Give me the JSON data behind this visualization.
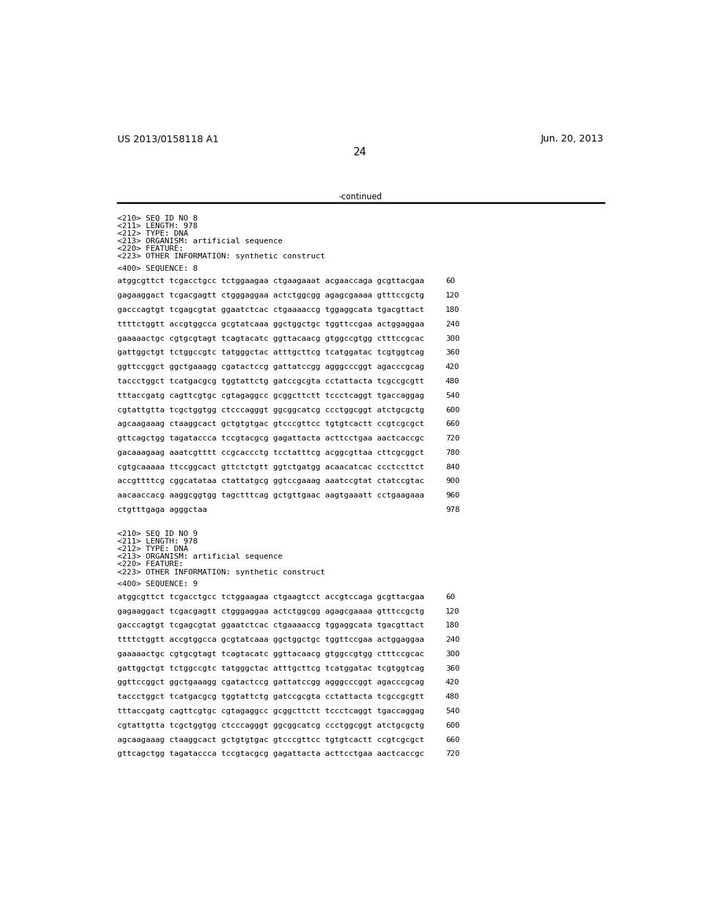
{
  "background_color": "#ffffff",
  "header_left": "US 2013/0158118 A1",
  "header_right": "Jun. 20, 2013",
  "page_number": "24",
  "continued_text": "-continued",
  "sections": [
    {
      "type": "metadata",
      "lines": [
        "<210> SEQ ID NO 8",
        "<211> LENGTH: 978",
        "<212> TYPE: DNA",
        "<213> ORGANISM: artificial sequence",
        "<220> FEATURE:",
        "<223> OTHER INFORMATION: synthetic construct"
      ]
    },
    {
      "type": "sequence_label",
      "text": "<400> SEQUENCE: 8"
    },
    {
      "type": "sequence",
      "rows": [
        [
          "atggcgttct tcgacctgcc tctggaagaa ctgaagaaat acgaaccaga gcgttacgaa",
          "60"
        ],
        [
          "gagaaggact tcgacgagtt ctgggaggaa actctggcgg agagcgaaaa gtttccgctg",
          "120"
        ],
        [
          "gacccagtgt tcgagcgtat ggaatctcac ctgaaaaccg tggaggcata tgacgttact",
          "180"
        ],
        [
          "ttttctggtt accgtggcca gcgtatcaaa ggctggctgc tggttccgaa actggaggaa",
          "240"
        ],
        [
          "gaaaaactgc cgtgcgtagt tcagtacatc ggttacaacg gtggccgtgg ctttccgcac",
          "300"
        ],
        [
          "gattggctgt tctggccgtc tatgggctac atttgcttcg tcatggatac tcgtggtcag",
          "360"
        ],
        [
          "ggttccggct ggctgaaagg cgatactccg gattatccgg agggcccggt agacccgcag",
          "420"
        ],
        [
          "taccctggct tcatgacgcg tggtattctg gatccgcgta cctattacta tcgccgcgtt",
          "480"
        ],
        [
          "tttaccgatg cagttcgtgc cgtagaggcc gcggcttctt tccctcaggt tgaccaggag",
          "540"
        ],
        [
          "cgtattgtta tcgctggtgg ctcccagggt ggcggcatcg ccctggcggt atctgcgctg",
          "600"
        ],
        [
          "agcaagaaag ctaaggcact gctgtgtgac gtcccgttcc tgtgtcactt ccgtcgcgct",
          "660"
        ],
        [
          "gttcagctgg tagataccca tccgtacgcg gagattacta acttcctgaa aactcaccgc",
          "720"
        ],
        [
          "gacaaagaag aaatcgtttt ccgcaccctg tcctatttcg acggcgttaa cttcgcggct",
          "780"
        ],
        [
          "cgtgcaaaaa ttccggcact gttctctgtt ggtctgatgg acaacatcac ccctccttct",
          "840"
        ],
        [
          "accgttttcg cggcatataa ctattatgcg ggtccgaaag aaatccgtat ctatccgtac",
          "900"
        ],
        [
          "aacaaccacg aaggcggtgg tagctttcag gctgttgaac aagtgaaatt cctgaagaaa",
          "960"
        ],
        [
          "ctgtttgaga agggctaa",
          "978"
        ]
      ]
    },
    {
      "type": "metadata",
      "lines": [
        "<210> SEQ ID NO 9",
        "<211> LENGTH: 978",
        "<212> TYPE: DNA",
        "<213> ORGANISM: artificial sequence",
        "<220> FEATURE:",
        "<223> OTHER INFORMATION: synthetic construct"
      ]
    },
    {
      "type": "sequence_label",
      "text": "<400> SEQUENCE: 9"
    },
    {
      "type": "sequence",
      "rows": [
        [
          "atggcgttct tcgacctgcc tctggaagaa ctgaagtcct accgtccaga gcgttacgaa",
          "60"
        ],
        [
          "gagaaggact tcgacgagtt ctgggaggaa actctggcgg agagcgaaaa gtttccgctg",
          "120"
        ],
        [
          "gacccagtgt tcgagcgtat ggaatctcac ctgaaaaccg tggaggcata tgacgttact",
          "180"
        ],
        [
          "ttttctggtt accgtggcca gcgtatcaaa ggctggctgc tggttccgaa actggaggaa",
          "240"
        ],
        [
          "gaaaaactgc cgtgcgtagt tcagtacatc ggttacaacg gtggccgtgg ctttccgcac",
          "300"
        ],
        [
          "gattggctgt tctggccgtc tatgggctac atttgcttcg tcatggatac tcgtggtcag",
          "360"
        ],
        [
          "ggttccggct ggctgaaagg cgatactccg gattatccgg agggcccggt agacccgcag",
          "420"
        ],
        [
          "taccctggct tcatgacgcg tggtattctg gatccgcgta cctattacta tcgccgcgtt",
          "480"
        ],
        [
          "tttaccgatg cagttcgtgc cgtagaggcc gcggcttctt tccctcaggt tgaccaggag",
          "540"
        ],
        [
          "cgtattgtta tcgctggtgg ctcccagggt ggcggcatcg ccctggcggt atctgcgctg",
          "600"
        ],
        [
          "agcaagaaag ctaaggcact gctgtgtgac gtcccgttcc tgtgtcactt ccgtcgcgct",
          "660"
        ],
        [
          "gttcagctgg tagataccca tccgtacgcg gagattacta acttcctgaa aactcaccgc",
          "720"
        ]
      ]
    }
  ]
}
